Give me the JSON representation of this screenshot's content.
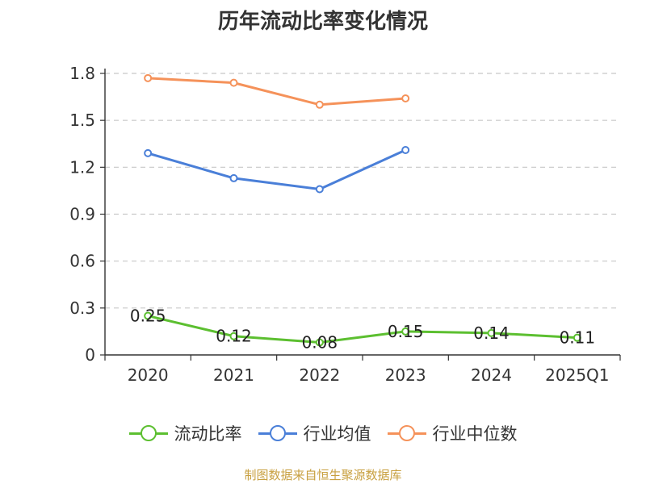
{
  "title": "历年流动比率变化情况",
  "source": "制图数据来自恒生聚源数据库",
  "colors": {
    "grid": "#c8c8c8",
    "axis": "#333333",
    "text": "#333333",
    "source": "#c8a040"
  },
  "chart_data": {
    "type": "line",
    "title": "历年流动比率变化情况",
    "xlabel": "",
    "ylabel": "",
    "categories": [
      "2020",
      "2021",
      "2022",
      "2023",
      "2024",
      "2025Q1"
    ],
    "ylim": [
      0,
      1.8
    ],
    "yticks": [
      "0",
      "0.3",
      "0.6",
      "0.9",
      "1.2",
      "1.5",
      "1.8"
    ],
    "grid": true,
    "legend_position": "bottom",
    "series": [
      {
        "name": "流动比率",
        "color": "#5cbf30",
        "values": [
          0.25,
          0.12,
          0.08,
          0.15,
          0.14,
          0.11
        ],
        "labels": [
          "0.25",
          "0.12",
          "0.08",
          "0.15",
          "0.14",
          "0.11"
        ]
      },
      {
        "name": "行业均值",
        "color": "#4a7fd8",
        "values": [
          1.29,
          1.13,
          1.06,
          1.31,
          null,
          null
        ]
      },
      {
        "name": "行业中位数",
        "color": "#f5925a",
        "values": [
          1.77,
          1.74,
          1.6,
          1.64,
          null,
          null
        ]
      }
    ]
  }
}
